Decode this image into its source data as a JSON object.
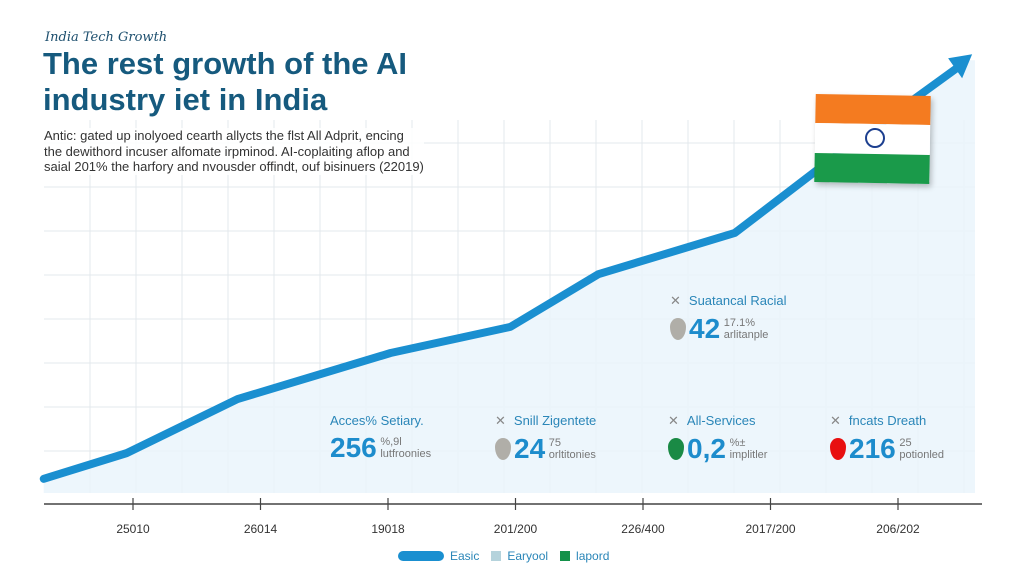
{
  "header": {
    "subtitle": "India Tech Growth",
    "title": "The rest growth of the AI industry iet in India",
    "description": "Antic: gated up inolyoed cearth allycts the flst All Adprit, encing the dewithord incuser alfomate irpminod. AI-coplaiting aflop and saial 201% the harfory and nvousder offindt, ouf bisinuers (22019)"
  },
  "chart_data": {
    "type": "area",
    "title": "The rest growth of the AI industry iet in India",
    "x_tick_labels": [
      "25010",
      "26014",
      "19018",
      "201/200",
      "226/400",
      "2017/200",
      "206/202"
    ],
    "x": [
      -0.7,
      -0.05,
      0.82,
      2.02,
      2.96,
      3.65,
      4.72,
      5.47,
      6.55
    ],
    "values": [
      3.2,
      9.0,
      21.2,
      31.6,
      37.5,
      49.4,
      58.7,
      75.2,
      97.7
    ],
    "ylim": [
      0,
      100
    ],
    "xlim": [
      -0.7,
      6.6
    ],
    "grid": true,
    "legend_position": "bottom",
    "line_color": "#1a8fd0",
    "fill_color": "#eaf5fc",
    "legend": [
      {
        "label": "Easic",
        "color": "#1a8fd0"
      },
      {
        "label": "Earyool",
        "color": "#b5d3dc"
      },
      {
        "label": "lapord",
        "color": "#14914a"
      }
    ],
    "annotations": [
      {
        "label": "Suatancal Racial",
        "value": "42",
        "sup": "17.1%",
        "note": "arlitanple",
        "pin": "#b0aea8"
      },
      {
        "label": "Acces% Setiary.",
        "value": "256",
        "sup": "%,9l",
        "note": "lutfroonies",
        "pin": ""
      },
      {
        "label": "Snill Zigentete",
        "value": "24",
        "sup": "75",
        "note": "orltitonies",
        "pin": "#b0aea8"
      },
      {
        "label": "All-Services",
        "value": "0,2",
        "sup": "%±",
        "note": "implitler",
        "pin": "#1a8a45"
      },
      {
        "label": "fncats Dreath",
        "value": "216",
        "sup": "25",
        "note": "potionled",
        "pin": "#e81010"
      }
    ]
  },
  "flag": {
    "colors": [
      "#f47b20",
      "#ffffff",
      "#1a9a4a"
    ],
    "chakra": "#1c3f8f"
  }
}
